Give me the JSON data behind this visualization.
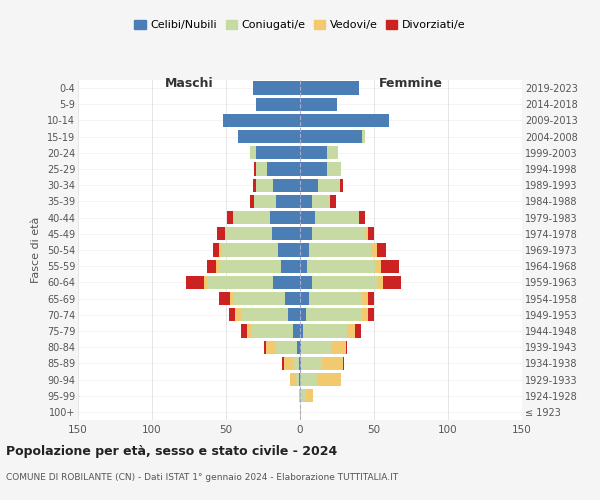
{
  "age_groups": [
    "100+",
    "95-99",
    "90-94",
    "85-89",
    "80-84",
    "75-79",
    "70-74",
    "65-69",
    "60-64",
    "55-59",
    "50-54",
    "45-49",
    "40-44",
    "35-39",
    "30-34",
    "25-29",
    "20-24",
    "15-19",
    "10-14",
    "5-9",
    "0-4"
  ],
  "birth_years": [
    "≤ 1923",
    "1924-1928",
    "1929-1933",
    "1934-1938",
    "1939-1943",
    "1944-1948",
    "1949-1953",
    "1954-1958",
    "1959-1963",
    "1964-1968",
    "1969-1973",
    "1974-1978",
    "1979-1983",
    "1984-1988",
    "1989-1993",
    "1994-1998",
    "1999-2003",
    "2004-2008",
    "2009-2013",
    "2014-2018",
    "2019-2023"
  ],
  "colors": {
    "celibe": "#4a7eb5",
    "coniugato": "#c8daa4",
    "vedovo": "#f2c96e",
    "divorziato": "#cc2222"
  },
  "maschi": {
    "celibe": [
      0,
      0,
      1,
      1,
      2,
      5,
      8,
      10,
      18,
      13,
      15,
      19,
      20,
      16,
      18,
      22,
      30,
      42,
      52,
      30,
      32
    ],
    "coniugato": [
      0,
      0,
      2,
      4,
      14,
      28,
      32,
      35,
      45,
      42,
      38,
      32,
      25,
      15,
      12,
      8,
      4,
      0,
      0,
      0,
      0
    ],
    "vedovo": [
      0,
      1,
      4,
      6,
      7,
      3,
      4,
      2,
      2,
      2,
      2,
      0,
      0,
      0,
      0,
      0,
      0,
      0,
      0,
      0,
      0
    ],
    "divorziato": [
      0,
      0,
      0,
      1,
      1,
      4,
      4,
      8,
      12,
      6,
      4,
      5,
      4,
      3,
      2,
      1,
      0,
      0,
      0,
      0,
      0
    ]
  },
  "femmine": {
    "nubile": [
      0,
      0,
      0,
      1,
      1,
      2,
      4,
      6,
      8,
      5,
      6,
      8,
      10,
      8,
      12,
      18,
      18,
      42,
      60,
      25,
      40
    ],
    "coniugata": [
      0,
      4,
      12,
      14,
      20,
      30,
      38,
      36,
      44,
      46,
      42,
      36,
      30,
      12,
      15,
      10,
      8,
      2,
      0,
      0,
      0
    ],
    "vedova": [
      1,
      5,
      16,
      14,
      10,
      5,
      4,
      4,
      4,
      4,
      4,
      2,
      0,
      0,
      0,
      0,
      0,
      0,
      0,
      0,
      0
    ],
    "divorziata": [
      0,
      0,
      0,
      1,
      1,
      4,
      4,
      4,
      12,
      12,
      6,
      4,
      4,
      4,
      2,
      0,
      0,
      0,
      0,
      0,
      0
    ]
  },
  "xlim": 150,
  "title": "Popolazione per età, sesso e stato civile - 2024",
  "subtitle": "COMUNE DI ROBILANTE (CN) - Dati ISTAT 1° gennaio 2024 - Elaborazione TUTTITALIA.IT",
  "ylabel_left": "Fasce di età",
  "xlabel_maschi": "Maschi",
  "xlabel_femmine": "Femmine",
  "legend_labels": [
    "Celibi/Nubili",
    "Coniugati/e",
    "Vedovi/e",
    "Divorziati/e"
  ],
  "background_color": "#f5f5f5",
  "plot_bg": "#ffffff"
}
